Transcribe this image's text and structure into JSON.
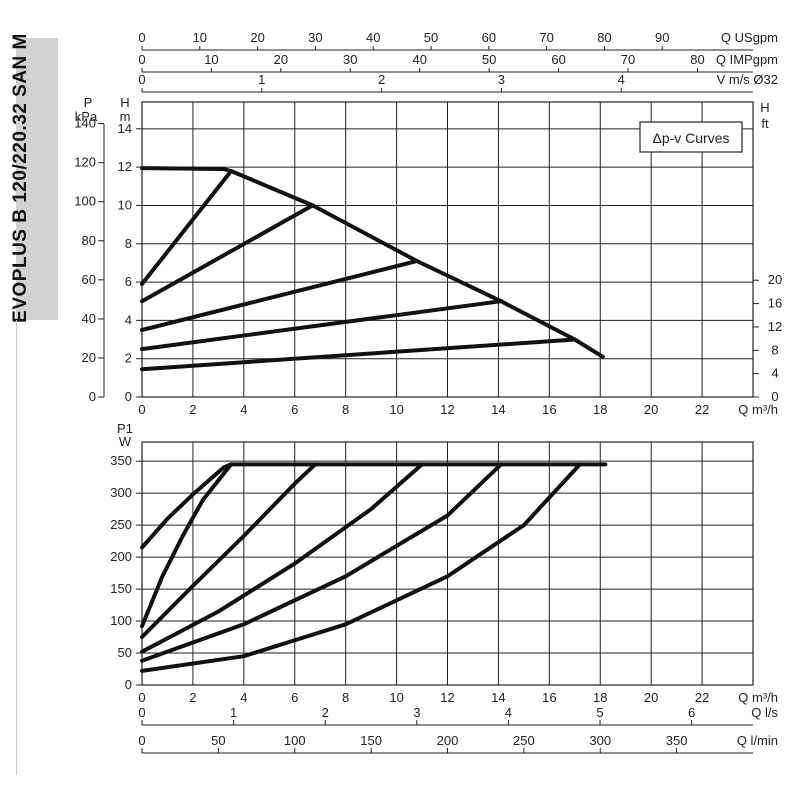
{
  "title": "EVOPLUS B 120/220.32 SAN M",
  "chart_data": [
    {
      "type": "line",
      "legend": "Δp-v Curves",
      "xlabel": "Q m³/h",
      "xlim": [
        0,
        24
      ],
      "x_ticks": [
        "0",
        "2",
        "4",
        "6",
        "8",
        "10",
        "12",
        "14",
        "16",
        "18",
        "20",
        "22"
      ],
      "y_left_outer": {
        "label": "P",
        "unit": "kPa",
        "ticks": [
          "0",
          "20",
          "40",
          "60",
          "80",
          "100",
          "120",
          "140"
        ]
      },
      "y_left_inner": {
        "label": "H",
        "unit": "m",
        "ticks": [
          "0",
          "2",
          "4",
          "6",
          "8",
          "10",
          "12",
          "14"
        ]
      },
      "ylim_m": [
        0,
        15.4
      ],
      "y_right": {
        "label": "H",
        "unit": "ft",
        "ticks": [
          "0",
          "4",
          "8",
          "12",
          "16",
          "20"
        ]
      },
      "top_axes": [
        {
          "label": "Q USgpm",
          "ticks": [
            "0",
            "10",
            "20",
            "30",
            "40",
            "50",
            "60",
            "70",
            "80",
            "90"
          ],
          "max": 105.7
        },
        {
          "label": "Q IMPgpm",
          "ticks": [
            "0",
            "10",
            "20",
            "30",
            "40",
            "50",
            "60",
            "70",
            "80"
          ],
          "max": 88
        },
        {
          "label": "V m/s Ø32",
          "ticks": [
            "0",
            "1",
            "2",
            "3",
            "4"
          ],
          "max": 5.1
        }
      ],
      "series": [
        {
          "x": [
            0,
            3.2,
            3.5
          ],
          "y": [
            11.95,
            11.9,
            11.8
          ]
        },
        {
          "x": [
            3.5,
            6.7,
            10.8,
            14.1,
            17.0,
            18.1
          ],
          "y": [
            11.8,
            10.0,
            7.1,
            5.0,
            3.0,
            2.1
          ]
        },
        {
          "x": [
            0,
            3.5
          ],
          "y": [
            5.9,
            11.8
          ]
        },
        {
          "x": [
            0,
            6.7
          ],
          "y": [
            5.0,
            10.0
          ]
        },
        {
          "x": [
            0,
            10.8
          ],
          "y": [
            3.5,
            7.1
          ]
        },
        {
          "x": [
            0,
            14.1
          ],
          "y": [
            2.5,
            5.0
          ]
        },
        {
          "x": [
            0,
            17.0
          ],
          "y": [
            1.45,
            3.0
          ]
        }
      ]
    },
    {
      "type": "line",
      "ylabel": "P1",
      "yunit": "W",
      "xlabel": "Q m³/h",
      "xlim": [
        0,
        24
      ],
      "ylim": [
        0,
        380
      ],
      "x_ticks": [
        "0",
        "2",
        "4",
        "6",
        "8",
        "10",
        "12",
        "14",
        "16",
        "18",
        "20",
        "22"
      ],
      "y_ticks": [
        "0",
        "50",
        "100",
        "150",
        "200",
        "250",
        "300",
        "350"
      ],
      "bottom_axes": [
        {
          "label": "Q l/s",
          "ticks": [
            "0",
            "1",
            "2",
            "3",
            "4",
            "5",
            "6"
          ],
          "max": 6.67
        },
        {
          "label": "Q l/min",
          "ticks": [
            "0",
            "50",
            "100",
            "150",
            "200",
            "250",
            "300",
            "350"
          ],
          "max": 400
        }
      ],
      "series": [
        {
          "x": [
            3.5,
            18.2
          ],
          "y": [
            345,
            345
          ]
        },
        {
          "x": [
            0,
            1,
            2,
            3.2,
            3.5
          ],
          "y": [
            215,
            260,
            298,
            340,
            345
          ]
        },
        {
          "x": [
            0,
            0.8,
            1.6,
            2.4,
            3.5
          ],
          "y": [
            92,
            170,
            233,
            290,
            345
          ]
        },
        {
          "x": [
            0,
            2,
            4,
            6,
            6.8
          ],
          "y": [
            75,
            155,
            233,
            315,
            345
          ]
        },
        {
          "x": [
            0,
            3,
            6,
            9,
            11
          ],
          "y": [
            52,
            115,
            190,
            275,
            345
          ]
        },
        {
          "x": [
            0,
            4,
            8,
            12,
            14.1
          ],
          "y": [
            38,
            95,
            170,
            265,
            345
          ]
        },
        {
          "x": [
            0,
            4,
            8,
            12,
            15,
            17.2
          ],
          "y": [
            22,
            45,
            95,
            170,
            250,
            345
          ]
        }
      ]
    }
  ]
}
